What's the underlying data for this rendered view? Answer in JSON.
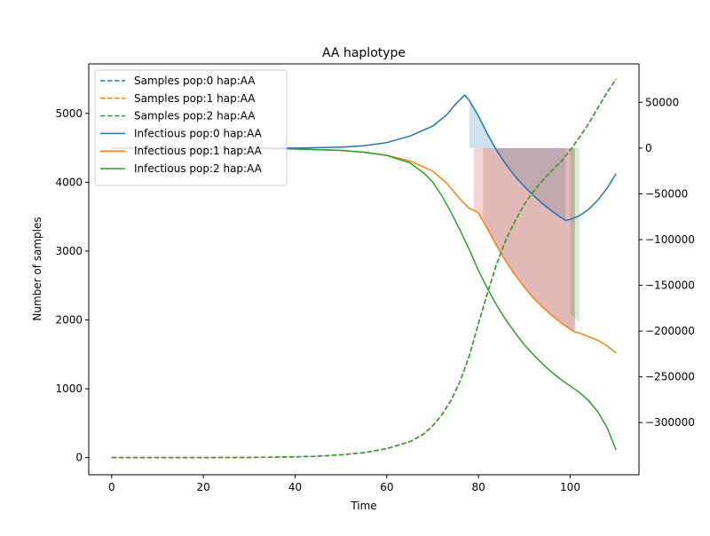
{
  "chart_data": {
    "type": "line",
    "title": "AA haplotype",
    "xlabel": "Time",
    "ylabel": "Number of samples",
    "y2label": "",
    "xlim": [
      -5,
      115
    ],
    "ylim": [
      -250,
      5720
    ],
    "y2lim": [
      -357000,
      92000
    ],
    "x_ticks": [
      0,
      20,
      40,
      60,
      80,
      100
    ],
    "y_ticks": [
      0,
      1000,
      2000,
      3000,
      4000,
      5000
    ],
    "y2_ticks": [
      50000,
      0,
      -50000,
      -100000,
      -150000,
      -200000,
      -250000,
      -300000
    ],
    "y2_tick_labels": [
      "50000",
      "0",
      "−50000",
      "−100000",
      "−150000",
      "−200000",
      "−250000",
      "−300000"
    ],
    "legend_position": "top-left",
    "legend": [
      {
        "label": "Samples pop:0 hap:AA",
        "color": "#1f77b4",
        "dash": true
      },
      {
        "label": "Samples pop:1 hap:AA",
        "color": "#ff7f0e",
        "dash": true
      },
      {
        "label": "Samples pop:2 hap:AA",
        "color": "#2ca02c",
        "dash": true
      },
      {
        "label": "Infectious pop:0 hap:AA",
        "color": "#1f77b4",
        "dash": false
      },
      {
        "label": "Infectious pop:1 hap:AA",
        "color": "#ff7f0e",
        "dash": false
      },
      {
        "label": "Infectious pop:2 hap:AA",
        "color": "#2ca02c",
        "dash": false
      }
    ],
    "samples_series": [
      {
        "axis": "left",
        "color": "#1f77b4",
        "x": [
          0,
          10,
          20,
          30,
          40,
          45,
          50,
          55,
          60,
          65,
          68,
          70,
          72,
          74,
          76,
          78,
          80,
          82,
          84,
          86,
          88,
          90,
          92,
          94,
          96,
          98,
          100,
          102,
          104,
          106,
          108,
          110
        ],
        "y": [
          0,
          0,
          0,
          2,
          10,
          20,
          40,
          70,
          130,
          230,
          340,
          460,
          620,
          830,
          1110,
          1480,
          1950,
          2400,
          2820,
          3170,
          3440,
          3680,
          3870,
          4030,
          4170,
          4300,
          4470,
          4650,
          4850,
          5080,
          5300,
          5500
        ]
      },
      {
        "axis": "left",
        "color": "#ff7f0e",
        "x": [
          0,
          10,
          20,
          30,
          40,
          45,
          50,
          55,
          60,
          65,
          68,
          70,
          72,
          74,
          76,
          78,
          80,
          82,
          84,
          86,
          88,
          90,
          92,
          94,
          96,
          98,
          100,
          102,
          104,
          106,
          108,
          110
        ],
        "y": [
          0,
          0,
          0,
          2,
          10,
          20,
          40,
          70,
          130,
          230,
          340,
          460,
          620,
          830,
          1110,
          1480,
          1950,
          2400,
          2820,
          3170,
          3440,
          3680,
          3870,
          4030,
          4170,
          4300,
          4470,
          4650,
          4850,
          5080,
          5300,
          5500
        ]
      },
      {
        "axis": "left",
        "color": "#2ca02c",
        "x": [
          0,
          10,
          20,
          30,
          40,
          45,
          50,
          55,
          60,
          65,
          68,
          70,
          72,
          74,
          76,
          78,
          80,
          82,
          84,
          86,
          88,
          90,
          92,
          94,
          96,
          98,
          100,
          102,
          104,
          106,
          108,
          110
        ],
        "y": [
          0,
          0,
          0,
          2,
          10,
          20,
          40,
          70,
          130,
          230,
          340,
          460,
          620,
          830,
          1110,
          1480,
          1950,
          2400,
          2820,
          3170,
          3440,
          3680,
          3870,
          4030,
          4170,
          4300,
          4470,
          4650,
          4850,
          5080,
          5300,
          5500
        ]
      }
    ],
    "infectious_series": [
      {
        "axis": "right",
        "color": "#1f77b4",
        "x": [
          0,
          20,
          40,
          50,
          55,
          60,
          65,
          70,
          73,
          75,
          77,
          78,
          80,
          82,
          84,
          86,
          88,
          90,
          92,
          94,
          96,
          98,
          99,
          100,
          102,
          104,
          106,
          108,
          110
        ],
        "y": [
          0,
          0,
          0,
          1000,
          2500,
          6000,
          13000,
          24000,
          36000,
          48000,
          58000,
          52000,
          35000,
          15000,
          -3000,
          -18000,
          -31000,
          -42000,
          -52000,
          -61000,
          -69000,
          -76000,
          -79000,
          -78000,
          -74000,
          -67000,
          -57000,
          -44000,
          -28000
        ]
      },
      {
        "axis": "right",
        "color": "#ff7f0e",
        "x": [
          0,
          20,
          30,
          40,
          50,
          55,
          60,
          65,
          70,
          73,
          76,
          78,
          79,
          80,
          82,
          84,
          86,
          88,
          90,
          92,
          94,
          96,
          98,
          100,
          101,
          102,
          104,
          106,
          108,
          110
        ],
        "y": [
          0,
          0,
          -300,
          -1000,
          -2500,
          -4500,
          -8000,
          -14000,
          -25000,
          -38000,
          -56000,
          -66000,
          -68000,
          -71000,
          -89000,
          -107000,
          -124000,
          -139000,
          -152000,
          -164000,
          -174000,
          -183000,
          -191000,
          -198000,
          -201000,
          -202000,
          -206000,
          -210000,
          -216000,
          -224000
        ]
      },
      {
        "axis": "right",
        "color": "#2ca02c",
        "x": [
          0,
          20,
          30,
          40,
          50,
          55,
          60,
          65,
          68,
          70,
          72,
          74,
          76,
          78,
          80,
          82,
          84,
          86,
          88,
          90,
          92,
          94,
          96,
          98,
          100,
          102,
          104,
          106,
          108,
          110
        ],
        "y": [
          0,
          0,
          -300,
          -1000,
          -2500,
          -4500,
          -8000,
          -16000,
          -27000,
          -37000,
          -52000,
          -70000,
          -90000,
          -111000,
          -134000,
          -154000,
          -172000,
          -188000,
          -202000,
          -215000,
          -226000,
          -236000,
          -245000,
          -253000,
          -260000,
          -267000,
          -276000,
          -288000,
          -305000,
          -330000
        ]
      }
    ],
    "shaded_regions": [
      {
        "color": "#1f77b4",
        "opacity": 0.22,
        "x": [
          78,
          80,
          82,
          84,
          86,
          88,
          90,
          92,
          94,
          96,
          98,
          99
        ],
        "y_top": [
          52000,
          35000,
          15000,
          -3000,
          -18000,
          -31000,
          -42000,
          -52000,
          -61000,
          -69000,
          -76000,
          -79000
        ],
        "y_base": 0
      },
      {
        "color": "#d62728",
        "opacity": 0.2,
        "x": [
          79,
          80,
          82,
          84,
          86,
          88,
          90,
          92,
          94,
          96,
          98,
          100,
          101
        ],
        "y_bottom": [
          -68000,
          -71000,
          -89000,
          -107000,
          -124000,
          -139000,
          -152000,
          -164000,
          -174000,
          -183000,
          -191000,
          -198000,
          -201000
        ],
        "y_base": 0
      },
      {
        "color": "#2ca02c",
        "opacity": 0.2,
        "x": [
          100,
          101,
          102
        ],
        "y_bottom": [
          -181000,
          -186000,
          -190000
        ],
        "y_base": 0
      },
      {
        "color": "#8c564b",
        "opacity": 0.2,
        "x": [
          81,
          82,
          84,
          86,
          88,
          90,
          92,
          94,
          96,
          98,
          100,
          101
        ],
        "y_bottom": [
          -79000,
          -89000,
          -107000,
          -124000,
          -139000,
          -152000,
          -164000,
          -174000,
          -183000,
          -191000,
          -198000,
          -201000
        ],
        "y_base": 0
      }
    ]
  }
}
